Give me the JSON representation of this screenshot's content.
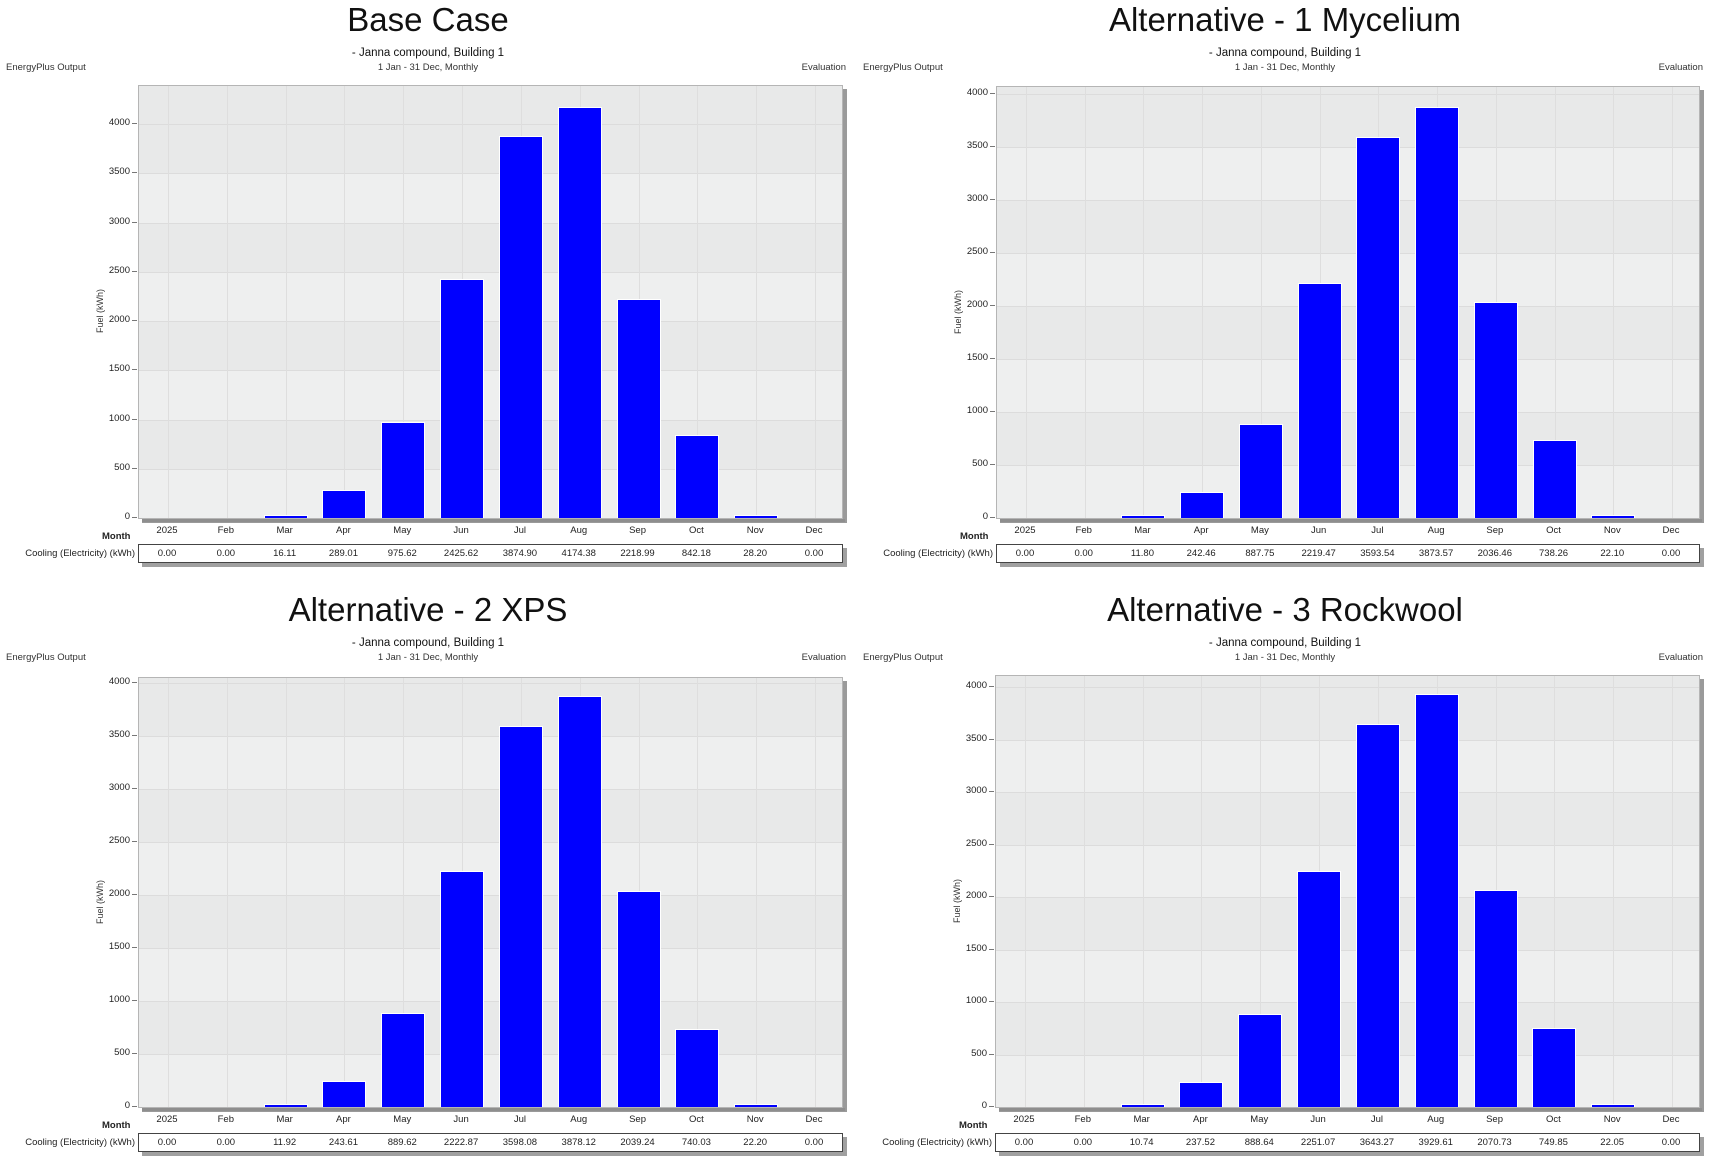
{
  "common": {
    "subtitle": "- Janna compound, Building 1",
    "period": "1 Jan - 31 Dec, Monthly",
    "source_label": "EnergyPlus Output",
    "evaluation_label": "Evaluation",
    "y_axis_label": "Fuel (kWh)",
    "x_axis_label": "Month",
    "row_label": "Cooling (Electricity) (kWh)",
    "bar_color": "#0000ff"
  },
  "chart_data": [
    {
      "type": "bar",
      "title": "Base Case",
      "categories": [
        "2025",
        "Feb",
        "Mar",
        "Apr",
        "May",
        "Jun",
        "Jul",
        "Aug",
        "Sep",
        "Oct",
        "Nov",
        "Dec"
      ],
      "values": [
        0.0,
        0.0,
        16.11,
        289.01,
        975.62,
        2425.62,
        3874.9,
        4174.38,
        2218.99,
        842.18,
        28.2,
        0.0
      ],
      "value_labels": [
        "0.00",
        "0.00",
        "16.11",
        "289.01",
        "975.62",
        "2425.62",
        "3874.90",
        "4174.38",
        "2218.99",
        "842.18",
        "28.20",
        "0.00"
      ],
      "yticks": [
        "0",
        "500",
        "1000",
        "1500",
        "2000",
        "2500",
        "3000",
        "3500",
        "4000"
      ],
      "xlabel": "Month",
      "ylabel": "Fuel (kWh)",
      "ylim": [
        0,
        4400
      ],
      "grid": true
    },
    {
      "type": "bar",
      "title": "Alternative - 1 Mycelium",
      "categories": [
        "2025",
        "Feb",
        "Mar",
        "Apr",
        "May",
        "Jun",
        "Jul",
        "Aug",
        "Sep",
        "Oct",
        "Nov",
        "Dec"
      ],
      "values": [
        0.0,
        0.0,
        11.8,
        242.46,
        887.75,
        2219.47,
        3593.54,
        3873.57,
        2036.46,
        738.26,
        22.1,
        0.0
      ],
      "value_labels": [
        "0.00",
        "0.00",
        "11.80",
        "242.46",
        "887.75",
        "2219.47",
        "3593.54",
        "3873.57",
        "2036.46",
        "738.26",
        "22.10",
        "0.00"
      ],
      "yticks": [
        "0",
        "500",
        "1000",
        "1500",
        "2000",
        "2500",
        "3000",
        "3500",
        "4000"
      ],
      "xlabel": "Month",
      "ylabel": "Fuel (kWh)",
      "ylim": [
        0,
        4050
      ],
      "grid": true
    },
    {
      "type": "bar",
      "title": "Alternative - 2 XPS",
      "categories": [
        "2025",
        "Feb",
        "Mar",
        "Apr",
        "May",
        "Jun",
        "Jul",
        "Aug",
        "Sep",
        "Oct",
        "Nov",
        "Dec"
      ],
      "values": [
        0.0,
        0.0,
        11.92,
        243.61,
        889.62,
        2222.87,
        3598.08,
        3878.12,
        2039.24,
        740.03,
        22.2,
        0.0
      ],
      "value_labels": [
        "0.00",
        "0.00",
        "11.92",
        "243.61",
        "889.62",
        "2222.87",
        "3598.08",
        "3878.12",
        "2039.24",
        "740.03",
        "22.20",
        "0.00"
      ],
      "yticks": [
        "0",
        "500",
        "1000",
        "1500",
        "2000",
        "2500",
        "3000",
        "3500",
        "4000"
      ],
      "xlabel": "Month",
      "ylabel": "Fuel (kWh)",
      "ylim": [
        0,
        4050
      ],
      "grid": true
    },
    {
      "type": "bar",
      "title": "Alternative - 3 Rockwool",
      "categories": [
        "2025",
        "Feb",
        "Mar",
        "Apr",
        "May",
        "Jun",
        "Jul",
        "Aug",
        "Sep",
        "Oct",
        "Nov",
        "Dec"
      ],
      "values": [
        0.0,
        0.0,
        10.74,
        237.52,
        888.64,
        2251.07,
        3643.27,
        3929.61,
        2070.73,
        749.85,
        22.05,
        0.0
      ],
      "value_labels": [
        "0.00",
        "0.00",
        "10.74",
        "237.52",
        "888.64",
        "2251.07",
        "3643.27",
        "3929.61",
        "2070.73",
        "749.85",
        "22.05",
        "0.00"
      ],
      "yticks": [
        "0",
        "500",
        "1000",
        "1500",
        "2000",
        "2500",
        "3000",
        "3500",
        "4000"
      ],
      "xlabel": "Month",
      "ylabel": "Fuel (kWh)",
      "ylim": [
        0,
        4100
      ],
      "grid": true
    }
  ]
}
